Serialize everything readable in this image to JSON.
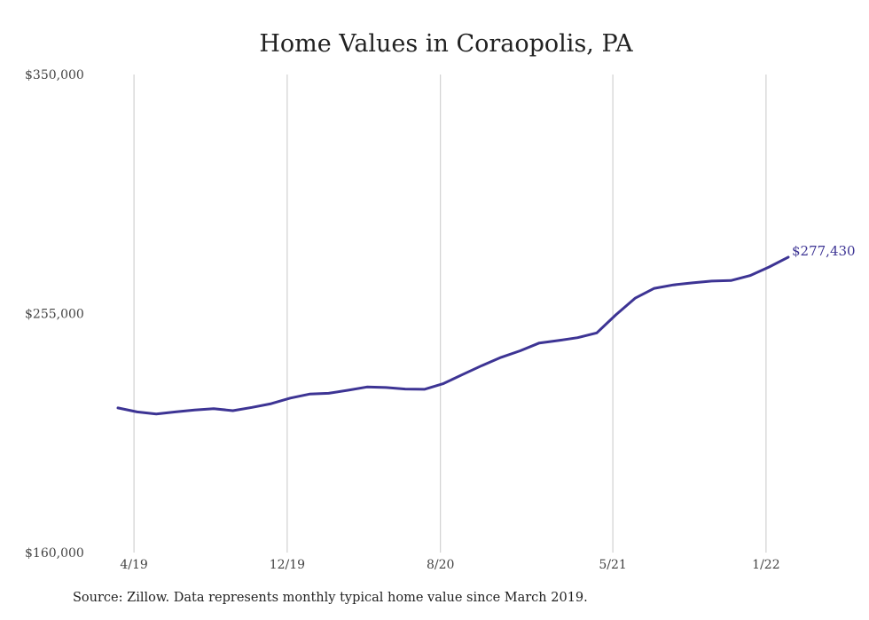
{
  "chart_data": {
    "type": "line",
    "title": "Home Values in Coraopolis, PA",
    "xlabel": "",
    "ylabel": "",
    "ylim": [
      160000,
      350000
    ],
    "y_ticks": [
      {
        "value": 350000,
        "label": "$350,000"
      },
      {
        "value": 255000,
        "label": "$255,000"
      },
      {
        "value": 160000,
        "label": "$160,000"
      }
    ],
    "x_ticks": [
      {
        "index": 1,
        "label": "4/19"
      },
      {
        "index": 9,
        "label": "12/19"
      },
      {
        "index": 17,
        "label": "8/20"
      },
      {
        "index": 26,
        "label": "5/21"
      },
      {
        "index": 34,
        "label": "1/22"
      }
    ],
    "grid": {
      "vertical": true,
      "horizontal": false
    },
    "series": [
      {
        "color": "#3d3494",
        "x": [
          "3/19",
          "4/19",
          "5/19",
          "6/19",
          "7/19",
          "8/19",
          "9/19",
          "10/19",
          "11/19",
          "12/19",
          "1/20",
          "2/20",
          "3/20",
          "4/20",
          "5/20",
          "6/20",
          "7/20",
          "8/20",
          "9/20",
          "10/20",
          "11/20",
          "12/20",
          "1/21",
          "2/21",
          "3/21",
          "4/21",
          "5/21",
          "6/21",
          "7/21",
          "8/21",
          "9/21",
          "10/21",
          "11/21",
          "12/21",
          "1/22",
          "2/22",
          "3/22"
        ],
        "values": [
          217500,
          215900,
          215100,
          215900,
          216700,
          217200,
          216400,
          217700,
          219200,
          221400,
          223000,
          223300,
          224500,
          225800,
          225600,
          225000,
          224900,
          227200,
          230800,
          234300,
          237600,
          240200,
          243300,
          244300,
          245400,
          247300,
          254500,
          261100,
          265000,
          266400,
          267200,
          267900,
          268100,
          270100,
          273500,
          277430,
          277430
        ],
        "end_label": "$277,430"
      }
    ]
  },
  "footer": {
    "source_note": "Source: Zillow. Data represents monthly typical home value since March 2019."
  }
}
